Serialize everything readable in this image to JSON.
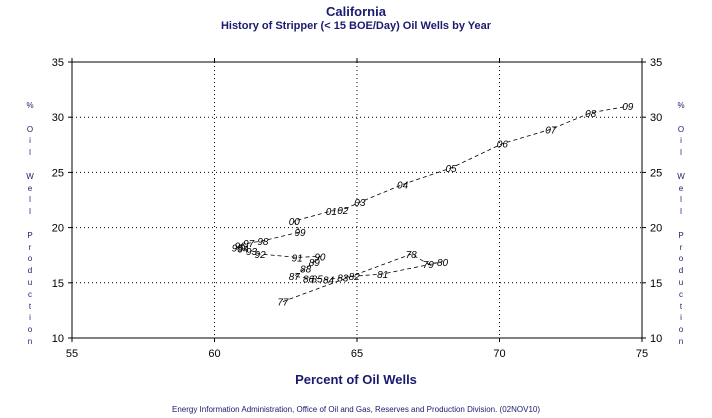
{
  "title": "California",
  "subtitle": "History of Stripper (< 15 BOE/Day) Oil Wells by Year",
  "ylabel": "% Oil Well Production",
  "xlabel": "Percent of Oil Wells",
  "footer": "Energy Information Administration, Office of Oil and Gas, Reserves and Production Division. (02NOV10)",
  "colors": {
    "text": "#1a1a6e",
    "axis": "#000000",
    "line": "#000000"
  },
  "chart_data": {
    "type": "line",
    "xlim": [
      55,
      75
    ],
    "ylim": [
      10,
      35
    ],
    "x_ticks": [
      "55",
      "60",
      "65",
      "70",
      "75"
    ],
    "y_ticks": [
      "10",
      "15",
      "20",
      "25",
      "30",
      "35"
    ],
    "grid": true,
    "right_axis": true,
    "line_style": "dashed",
    "points": [
      {
        "label": "77",
        "x": 62.4,
        "y": 13.3
      },
      {
        "label": "78",
        "x": 66.9,
        "y": 17.6
      },
      {
        "label": "79",
        "x": 67.5,
        "y": 16.7
      },
      {
        "label": "80",
        "x": 68.0,
        "y": 16.9
      },
      {
        "label": "81",
        "x": 65.9,
        "y": 15.8
      },
      {
        "label": "82",
        "x": 64.9,
        "y": 15.6
      },
      {
        "label": "83",
        "x": 64.5,
        "y": 15.5
      },
      {
        "label": "84",
        "x": 64.0,
        "y": 15.3
      },
      {
        "label": "85",
        "x": 63.6,
        "y": 15.4
      },
      {
        "label": "86",
        "x": 63.3,
        "y": 15.4
      },
      {
        "label": "87",
        "x": 62.8,
        "y": 15.6
      },
      {
        "label": "88",
        "x": 63.2,
        "y": 16.3
      },
      {
        "label": "89",
        "x": 63.5,
        "y": 16.9
      },
      {
        "label": "90",
        "x": 63.7,
        "y": 17.4
      },
      {
        "label": "91",
        "x": 62.9,
        "y": 17.3
      },
      {
        "label": "92",
        "x": 61.6,
        "y": 17.6
      },
      {
        "label": "93",
        "x": 61.3,
        "y": 17.9
      },
      {
        "label": "94",
        "x": 61.0,
        "y": 18.1
      },
      {
        "label": "95",
        "x": 60.8,
        "y": 18.2
      },
      {
        "label": "96",
        "x": 60.9,
        "y": 18.4
      },
      {
        "label": "97",
        "x": 61.2,
        "y": 18.6
      },
      {
        "label": "98",
        "x": 61.7,
        "y": 18.8
      },
      {
        "label": "99",
        "x": 63.0,
        "y": 19.6
      },
      {
        "label": "00",
        "x": 62.8,
        "y": 20.6
      },
      {
        "label": "01",
        "x": 64.1,
        "y": 21.5
      },
      {
        "label": "02",
        "x": 64.5,
        "y": 21.6
      },
      {
        "label": "03",
        "x": 65.1,
        "y": 22.3
      },
      {
        "label": "04",
        "x": 66.6,
        "y": 23.9
      },
      {
        "label": "05",
        "x": 68.3,
        "y": 25.4
      },
      {
        "label": "06",
        "x": 70.1,
        "y": 27.6
      },
      {
        "label": "07",
        "x": 71.8,
        "y": 28.9
      },
      {
        "label": "08",
        "x": 73.2,
        "y": 30.4
      },
      {
        "label": "09",
        "x": 74.5,
        "y": 31.0
      }
    ]
  }
}
